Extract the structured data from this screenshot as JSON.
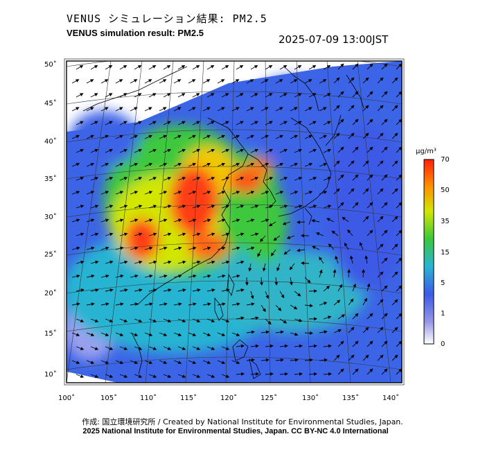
{
  "header": {
    "title_jp": "VENUS シミュレーション結果: PM2.5",
    "title_en": "VENUS simulation result: PM2.5",
    "timestamp": "2025-07-09 13:00JST"
  },
  "map": {
    "lon_ticks": [
      "100˚",
      "105˚",
      "110˚",
      "115˚",
      "120˚",
      "125˚",
      "130˚",
      "135˚",
      "140˚"
    ],
    "lat_ticks": [
      "50˚",
      "45˚",
      "40˚",
      "35˚",
      "30˚",
      "25˚",
      "20˚",
      "15˚",
      "10˚"
    ],
    "lon_range": [
      100,
      141
    ],
    "lat_range": [
      9,
      50
    ],
    "features": [
      "PM2.5 concentration field",
      "wind vectors",
      "coastlines",
      "graticule"
    ],
    "colors": {
      "very_low": "#c8c8f0",
      "low": "#3c64e6",
      "mid_low": "#28b4d2",
      "mid": "#3cc83c",
      "high": "#e6e600",
      "very_high": "#ff3c14"
    }
  },
  "colorbar": {
    "unit": "μg/m³",
    "ticks": [
      "70",
      "50",
      "35",
      "15",
      "5",
      "1",
      "0"
    ]
  },
  "footer": {
    "credit": "作成: 国立環境研究所 / Created by National Institute for Environmental Studies, Japan.",
    "license": "2025 National Institute for Environmental Studies, Japan. CC BY-NC 4.0 International"
  }
}
